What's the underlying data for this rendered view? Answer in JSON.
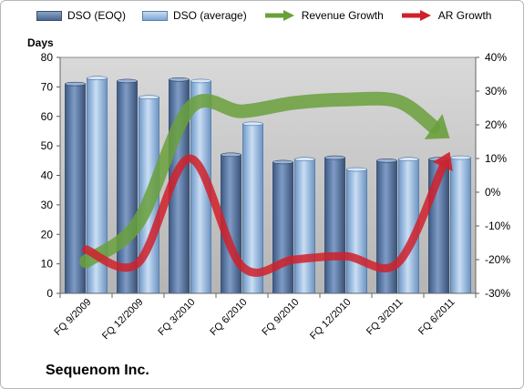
{
  "legend": {
    "eoq": "DSO (EOQ)",
    "avg": "DSO (average)",
    "revenue": "Revenue Growth",
    "ar": "AR Growth"
  },
  "colors": {
    "plot_bg": "#c0c0c0",
    "eoq_bar": "#4a6791",
    "avg_bar": "#7ea7d4",
    "revenue_line": "#6aa03c",
    "ar_line": "#d0202a"
  },
  "company_label": "Sequenom Inc.",
  "chart_data": {
    "type": "bar",
    "ylabel": "Days",
    "categories": [
      "FQ 9/2009",
      "FQ 12/2009",
      "FQ 3/2010",
      "FQ 6/2010",
      "FQ 9/2010",
      "FQ 12/2010",
      "FQ 3/2011",
      "FQ 6/2011"
    ],
    "ylim": [
      0,
      80
    ],
    "yticks": [
      0,
      10,
      20,
      30,
      40,
      50,
      60,
      70,
      80
    ],
    "y2lim": [
      -30,
      40
    ],
    "y2ticks": [
      "-30%",
      "-20%",
      "-10%",
      "0%",
      "10%",
      "20%",
      "30%",
      "40%"
    ],
    "y2values": [
      -30,
      -20,
      -10,
      0,
      10,
      20,
      30,
      40
    ],
    "grid": false,
    "series": [
      {
        "name": "DSO (EOQ)",
        "type": "bar",
        "axis": "left",
        "values": [
          71,
          72,
          72.5,
          47,
          44.5,
          46,
          45,
          45.5
        ]
      },
      {
        "name": "DSO (average)",
        "type": "bar",
        "axis": "left",
        "values": [
          73,
          66.5,
          72,
          57.5,
          45.5,
          42,
          45.5,
          46
        ]
      },
      {
        "name": "Revenue Growth",
        "type": "line",
        "axis": "right",
        "unit": "%",
        "values": [
          -20.5,
          -9,
          25,
          24,
          26.5,
          27.5,
          27,
          16
        ]
      },
      {
        "name": "AR Growth",
        "type": "line",
        "axis": "right",
        "unit": "%",
        "values": [
          -17,
          -21,
          10,
          -22,
          -20,
          -19,
          -21,
          12
        ]
      }
    ]
  }
}
